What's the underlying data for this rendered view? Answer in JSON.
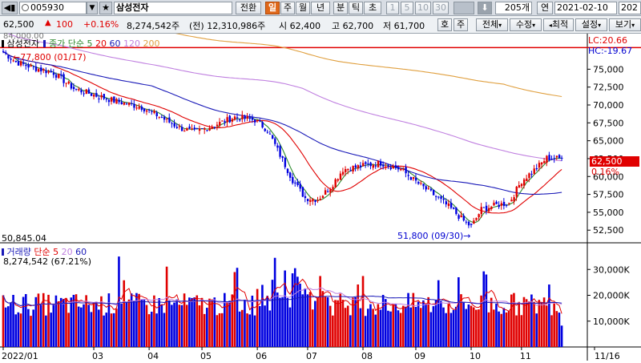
{
  "toolbar": {
    "nav_left": "◀▮",
    "code": "005930",
    "dropdown": "▼",
    "star": "★",
    "name": "삼성전자",
    "toggle": "전환",
    "periods": [
      "일",
      "주",
      "월",
      "년",
      "분",
      "틱",
      "초"
    ],
    "period_active": 0,
    "intervals": [
      "1",
      "5",
      "10",
      "30"
    ],
    "count": "205",
    "count_unit": "개",
    "year_btn": "연",
    "date": "2021-02-10",
    "date_trail": "202"
  },
  "quote": {
    "price": "62,500",
    "change_arrow": "▲",
    "change": "100",
    "change_pct": "+0.16%",
    "volume": "8,274,542주",
    "prev_volume": "(전) 12,310,986주",
    "open": "시 62,400",
    "high": "고 62,700",
    "low": "저 61,700",
    "buttons": [
      "호",
      "주",
      "전체",
      "수정",
      "최적",
      "설정",
      "보기"
    ]
  },
  "legend": {
    "top_left_overlay": "84,000.00",
    "stock": "삼성전자",
    "ma_label": "종가 단순",
    "ma_periods": [
      "5",
      "20",
      "60",
      "120",
      "200"
    ],
    "lc": "LC:20.66",
    "hc": "HC:-19.67",
    "high_annot": "77,800 (01/17)",
    "low_annot": "51,800 (09/30)",
    "bottom_left": "50,845.04",
    "price_tag": "62,500",
    "price_tag_pct": "0.16%",
    "vol_label": "거래량",
    "vol_ma_label": "단순",
    "vol_ma_periods": [
      "5",
      "20",
      "60"
    ],
    "vol_value": "8,274,542 (67.21%)"
  },
  "chart_data": {
    "type": "candlestick",
    "price_ticks": [
      "75,000",
      "72,500",
      "70,000",
      "67,500",
      "65,000",
      "62,500",
      "60,000",
      "57,500",
      "55,000",
      "52,500"
    ],
    "price_tick_values": [
      75000,
      72500,
      70000,
      67500,
      65000,
      62500,
      60000,
      57500,
      55000,
      52500
    ],
    "price_range": [
      50845,
      78400
    ],
    "volume_ticks": [
      "30,000K",
      "20,000K",
      "10,000K"
    ],
    "volume_tick_values": [
      30000,
      20000,
      10000
    ],
    "volume_range": [
      0,
      40000
    ],
    "x_labels": [
      "2022/01",
      "03",
      "04",
      "05",
      "06",
      "07",
      "08",
      "09",
      "10",
      "11",
      "11/16"
    ],
    "x_label_indices": [
      0,
      36,
      58,
      79,
      101,
      121,
      143,
      164,
      186,
      206,
      225
    ],
    "close_keypoints": [
      [
        0,
        77400
      ],
      [
        5,
        76000
      ],
      [
        12,
        75200
      ],
      [
        20,
        74500
      ],
      [
        28,
        72300
      ],
      [
        36,
        71400
      ],
      [
        45,
        70500
      ],
      [
        55,
        69700
      ],
      [
        62,
        68400
      ],
      [
        70,
        66800
      ],
      [
        76,
        66200
      ],
      [
        84,
        67200
      ],
      [
        92,
        68300
      ],
      [
        100,
        67900
      ],
      [
        105,
        66500
      ],
      [
        110,
        63000
      ],
      [
        115,
        59500
      ],
      [
        120,
        57000
      ],
      [
        125,
        56800
      ],
      [
        130,
        58500
      ],
      [
        135,
        61000
      ],
      [
        143,
        61500
      ],
      [
        150,
        61900
      ],
      [
        158,
        61000
      ],
      [
        165,
        59000
      ],
      [
        172,
        57200
      ],
      [
        178,
        55500
      ],
      [
        183,
        53800
      ],
      [
        186,
        53000
      ],
      [
        190,
        55400
      ],
      [
        196,
        56000
      ],
      [
        201,
        56300
      ],
      [
        206,
        59400
      ],
      [
        212,
        61200
      ],
      [
        216,
        62600
      ],
      [
        222,
        62500
      ]
    ],
    "last_index": 222,
    "series": [
      {
        "name": "5",
        "color": "#2e8b2e"
      },
      {
        "name": "20",
        "color": "#e00000"
      },
      {
        "name": "60",
        "color": "#1a1ab8"
      },
      {
        "name": "120",
        "color": "#c080e0"
      },
      {
        "name": "200",
        "color": "#e0a040"
      }
    ],
    "volume_ma_colors": [
      "#e00000",
      "#c080e0",
      "#1a1ab8"
    ],
    "up_color": "#e00000",
    "down_color": "#0000e0",
    "hc_line_value": 77800
  }
}
